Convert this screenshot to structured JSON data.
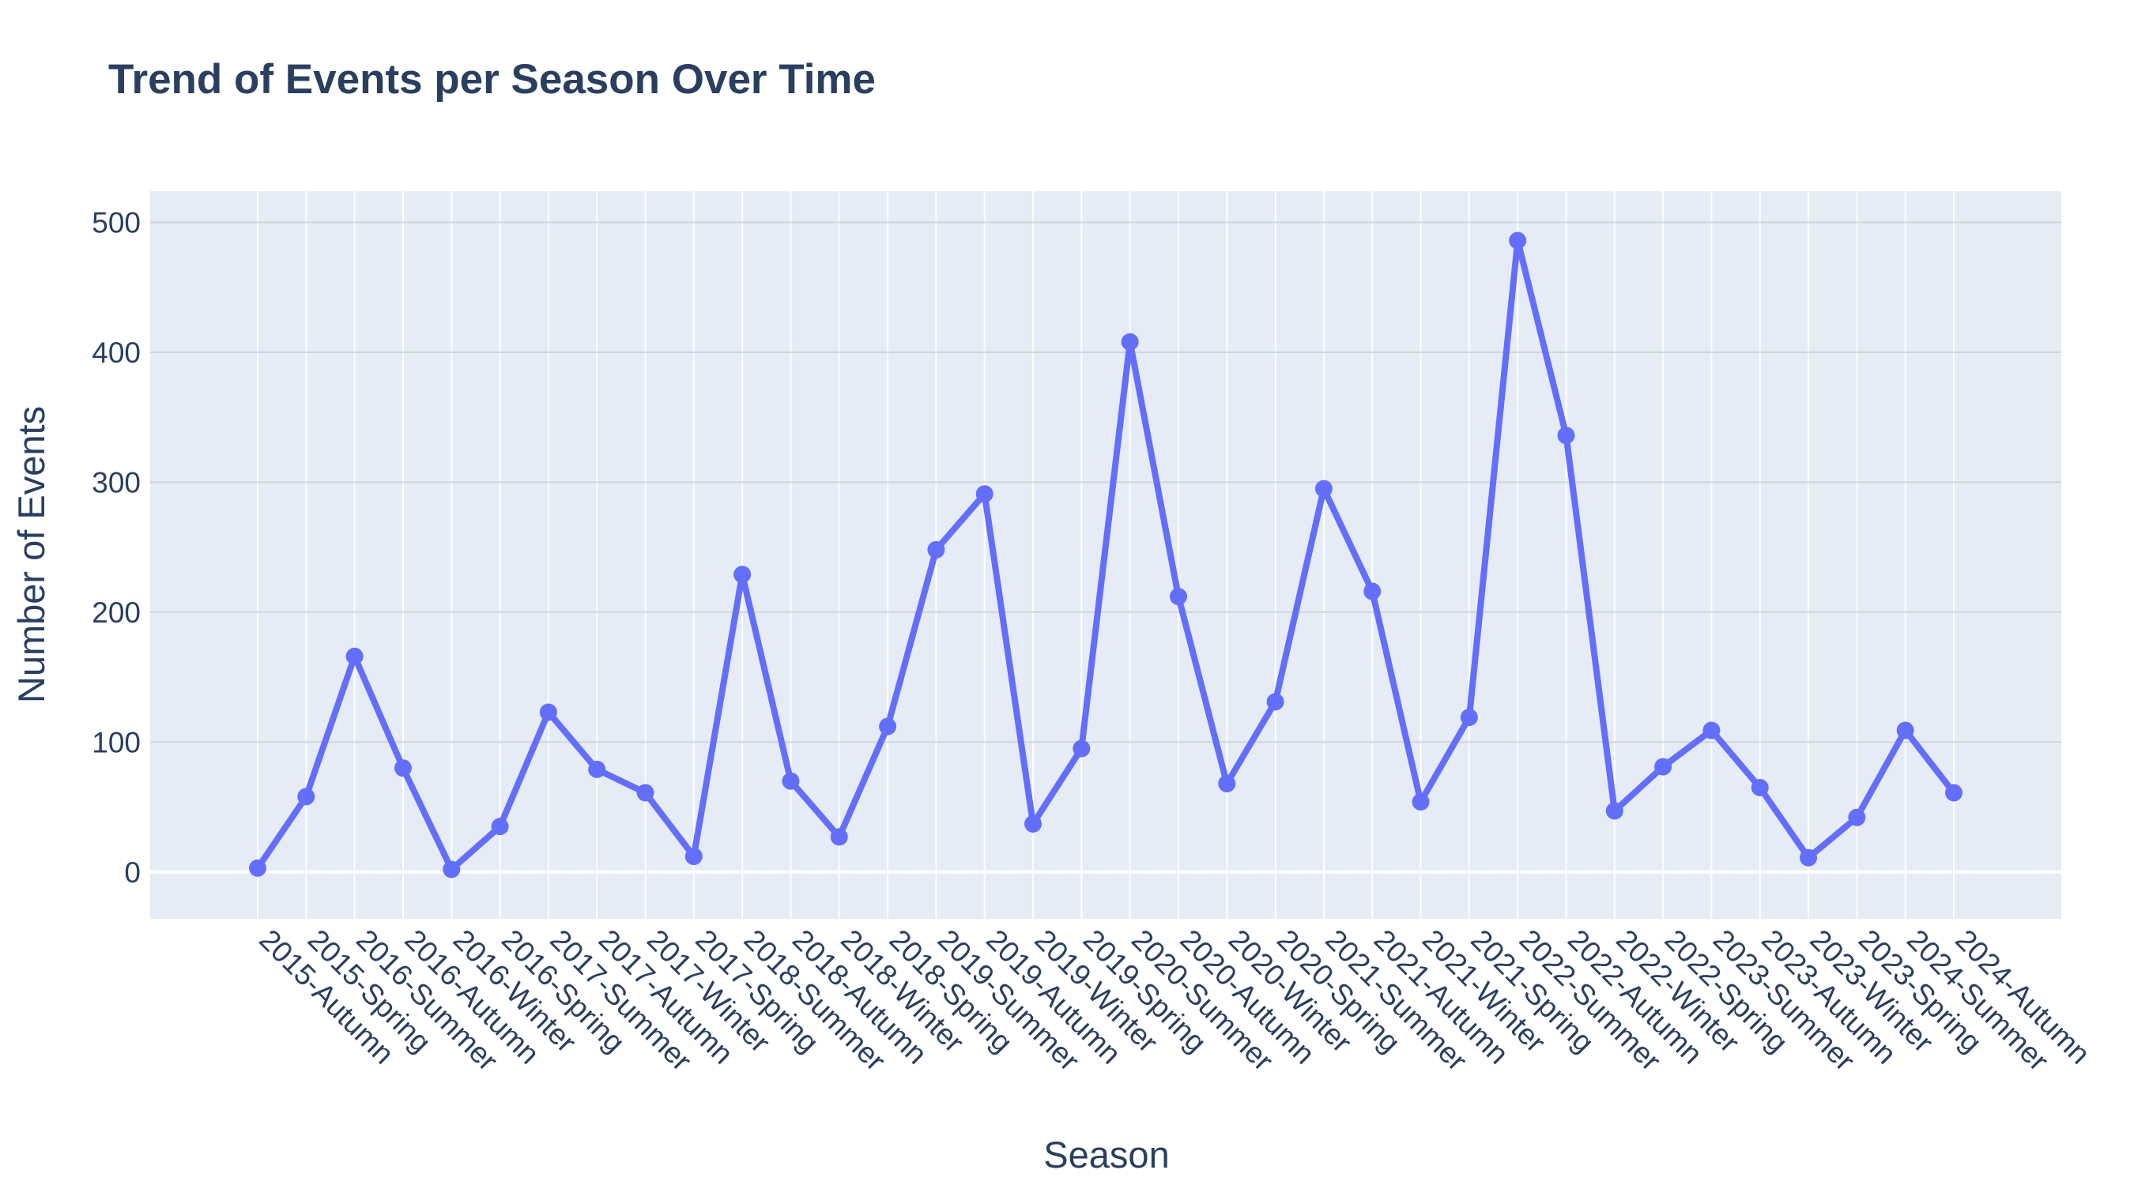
{
  "chart_data": {
    "type": "line",
    "title": "Trend of Events per Season Over Time",
    "xlabel": "Season",
    "ylabel": "Number of Events",
    "categories": [
      "2015-Autumn",
      "2015-Spring",
      "2016-Summer",
      "2016-Autumn",
      "2016-Winter",
      "2016-Spring",
      "2017-Summer",
      "2017-Autumn",
      "2017-Winter",
      "2017-Spring",
      "2018-Summer",
      "2018-Autumn",
      "2018-Winter",
      "2018-Spring",
      "2019-Summer",
      "2019-Autumn",
      "2019-Winter",
      "2019-Spring",
      "2020-Summer",
      "2020-Autumn",
      "2020-Winter",
      "2020-Spring",
      "2021-Summer",
      "2021-Autumn",
      "2021-Winter",
      "2021-Spring",
      "2022-Summer",
      "2022-Autumn",
      "2022-Winter",
      "2022-Spring",
      "2023-Summer",
      "2023-Autumn",
      "2023-Winter",
      "2023-Spring",
      "2024-Summer",
      "2024-Autumn"
    ],
    "values": [
      3,
      58,
      166,
      80,
      2,
      35,
      123,
      79,
      61,
      12,
      229,
      70,
      27,
      112,
      248,
      291,
      37,
      95,
      408,
      212,
      68,
      131,
      295,
      216,
      54,
      119,
      486,
      336,
      47,
      81,
      109,
      65,
      11,
      42,
      109,
      61
    ],
    "yticks": [
      0,
      100,
      200,
      300,
      400,
      500
    ],
    "ylim": [
      -36,
      524
    ],
    "grid": true,
    "legend": "none",
    "colors": {
      "line": "#636efa",
      "plot_bg": "#e5ecf6",
      "grid": "#ffffff",
      "text": "#2a3f5f"
    }
  }
}
